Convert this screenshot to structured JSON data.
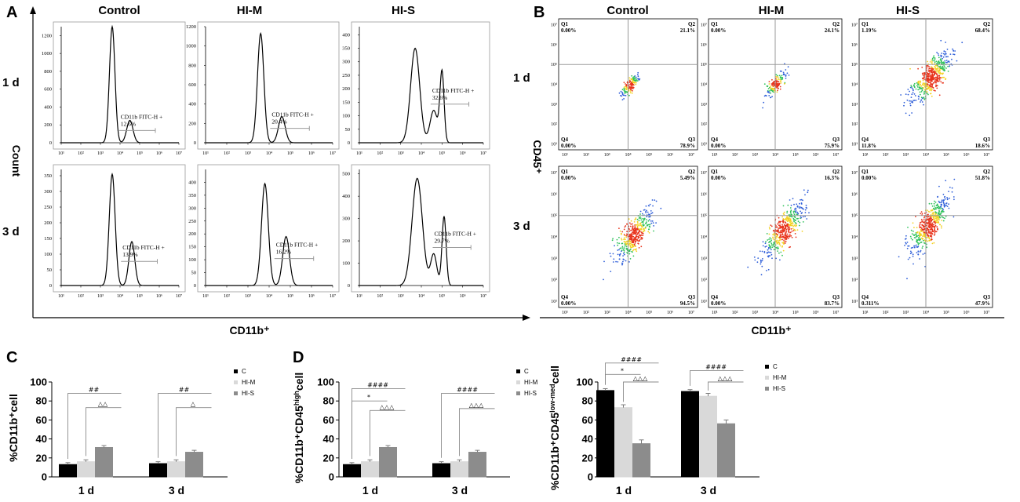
{
  "panels": {
    "a": "A",
    "b": "B",
    "c": "C",
    "d": "D"
  },
  "columns": [
    "Control",
    "HI-M",
    "HI-S"
  ],
  "rows": [
    "1 d",
    "3 d"
  ],
  "axis": {
    "histogram_y": "Count",
    "histogram_x": "CD11b⁺",
    "scatter_y": "CD45⁺",
    "scatter_x": "CD11b⁺"
  },
  "log_ticks": [
    "10¹",
    "10²",
    "10³",
    "10⁴",
    "10⁵",
    "10⁶",
    "10⁷"
  ],
  "histograms": [
    {
      "row": 0,
      "col": 0,
      "ymax": 1300,
      "yticks": [
        0,
        200,
        400,
        600,
        800,
        1000,
        1200
      ],
      "gate_label": "CD11b FITC-H +",
      "percent": "12.6%",
      "peaks": [
        {
          "x": 3.6,
          "h": 1300,
          "w": 0.14
        },
        {
          "x": 4.5,
          "h": 250,
          "w": 0.16
        }
      ]
    },
    {
      "row": 0,
      "col": 1,
      "ymax": 1200,
      "yticks": [
        0,
        200,
        400,
        600,
        800,
        1000,
        1200
      ],
      "gate_label": "CD11b FITC-H +",
      "percent": "20.4%",
      "peaks": [
        {
          "x": 3.6,
          "h": 1130,
          "w": 0.15
        },
        {
          "x": 4.6,
          "h": 270,
          "w": 0.16
        }
      ]
    },
    {
      "row": 0,
      "col": 2,
      "ymax": 430,
      "yticks": [
        0,
        50,
        100,
        150,
        200,
        250,
        300,
        350,
        400
      ],
      "gate_label": "CD11b FITC-H +",
      "percent": "32.6%",
      "peaks": [
        {
          "x": 3.7,
          "h": 350,
          "w": 0.22
        },
        {
          "x": 4.6,
          "h": 120,
          "w": 0.18
        },
        {
          "x": 5.0,
          "h": 260,
          "w": 0.1
        }
      ]
    },
    {
      "row": 1,
      "col": 0,
      "ymax": 370,
      "yticks": [
        0,
        50,
        100,
        150,
        200,
        250,
        300,
        350
      ],
      "gate_label": "CD11b FITC-H +",
      "percent": "13.9%",
      "peaks": [
        {
          "x": 3.6,
          "h": 355,
          "w": 0.15
        },
        {
          "x": 4.6,
          "h": 140,
          "w": 0.15
        }
      ]
    },
    {
      "row": 1,
      "col": 1,
      "ymax": 450,
      "yticks": [
        0,
        50,
        100,
        150,
        200,
        250,
        300,
        350,
        400
      ],
      "gate_label": "CD11b FITC-H +",
      "percent": "16.2%",
      "peaks": [
        {
          "x": 3.8,
          "h": 395,
          "w": 0.16
        },
        {
          "x": 4.8,
          "h": 190,
          "w": 0.16
        }
      ]
    },
    {
      "row": 1,
      "col": 2,
      "ymax": 520,
      "yticks": [
        0,
        100,
        200,
        300,
        400,
        500
      ],
      "gate_label": "CD11b FITC-H +",
      "percent": "29.7%",
      "peaks": [
        {
          "x": 3.8,
          "h": 480,
          "w": 0.25
        },
        {
          "x": 4.6,
          "h": 140,
          "w": 0.15
        },
        {
          "x": 5.1,
          "h": 310,
          "w": 0.1
        }
      ]
    }
  ],
  "scatter": [
    {
      "row": 0,
      "col": 0,
      "q1": "0.00%",
      "q2": "21.1%",
      "q3": "78.9%",
      "q4": "0.00%",
      "cx": 4.1,
      "cy": 3.95,
      "spread": 0.25,
      "n": 140
    },
    {
      "row": 0,
      "col": 1,
      "q1": "0.00%",
      "q2": "24.1%",
      "q3": "75.9%",
      "q4": "0.00%",
      "cx": 4.05,
      "cy": 4.0,
      "spread": 0.28,
      "n": 160
    },
    {
      "row": 0,
      "col": 2,
      "q1": "1.19%",
      "q2": "68.4%",
      "q3": "18.6%",
      "q4": "11.8%",
      "cx": 4.25,
      "cy": 4.35,
      "spread": 0.55,
      "n": 520
    },
    {
      "row": 1,
      "col": 0,
      "q1": "0.00%",
      "q2": "5.49%",
      "q3": "94.5%",
      "q4": "0.00%",
      "cx": 4.3,
      "cy": 4.1,
      "spread": 0.5,
      "n": 420
    },
    {
      "row": 1,
      "col": 1,
      "q1": "0.00%",
      "q2": "16.3%",
      "q3": "83.7%",
      "q4": "0.00%",
      "cx": 4.4,
      "cy": 4.3,
      "spread": 0.55,
      "n": 460
    },
    {
      "row": 1,
      "col": 2,
      "q1": "0.00%",
      "q2": "51.8%",
      "q3": "47.9%",
      "q4": "0.311%",
      "cx": 4.15,
      "cy": 4.5,
      "spread": 0.55,
      "n": 520
    }
  ],
  "legend": [
    "C",
    "HI-M",
    "HI-S"
  ],
  "bar_colors": {
    "C": "#000000",
    "HI-M": "#d9d9d9",
    "HI-S": "#8c8c8c"
  },
  "chart_data": [
    {
      "type": "bar",
      "id": "C",
      "ylabel": "%CD11b⁺cell",
      "categories": [
        "1 d",
        "3 d"
      ],
      "ylim": [
        0,
        100
      ],
      "yticks": [
        0,
        20,
        40,
        60,
        80,
        100
      ],
      "series": [
        {
          "name": "C",
          "values": [
            13,
            14
          ],
          "err": [
            2,
            2
          ]
        },
        {
          "name": "HI-M",
          "values": [
            16,
            16
          ],
          "err": [
            2,
            2
          ]
        },
        {
          "name": "HI-S",
          "values": [
            31,
            26
          ],
          "err": [
            2,
            2
          ]
        }
      ],
      "annotations": [
        {
          "cat": 0,
          "from": 0,
          "to": 2,
          "level": 88,
          "text": "##"
        },
        {
          "cat": 0,
          "from": 1,
          "to": 2,
          "level": 73,
          "text": "△△"
        },
        {
          "cat": 1,
          "from": 0,
          "to": 2,
          "level": 88,
          "text": "##"
        },
        {
          "cat": 1,
          "from": 1,
          "to": 2,
          "level": 73,
          "text": "△"
        }
      ]
    },
    {
      "type": "bar",
      "id": "D1",
      "ylabel_parts": [
        "%CD11b⁺CD45",
        "high",
        "cell"
      ],
      "categories": [
        "1 d",
        "3 d"
      ],
      "ylim": [
        0,
        100
      ],
      "yticks": [
        0,
        20,
        40,
        60,
        80,
        100
      ],
      "series": [
        {
          "name": "C",
          "values": [
            13,
            14
          ],
          "err": [
            2,
            2
          ]
        },
        {
          "name": "HI-M",
          "values": [
            16,
            16
          ],
          "err": [
            2,
            2
          ]
        },
        {
          "name": "HI-S",
          "values": [
            31,
            26
          ],
          "err": [
            2,
            2
          ]
        }
      ],
      "annotations": [
        {
          "cat": 0,
          "from": 0,
          "to": 2,
          "level": 93,
          "text": "####"
        },
        {
          "cat": 0,
          "from": 0,
          "to": 1,
          "level": 80,
          "text": "*"
        },
        {
          "cat": 0,
          "from": 1,
          "to": 2,
          "level": 70,
          "text": "△△△"
        },
        {
          "cat": 1,
          "from": 0,
          "to": 2,
          "level": 88,
          "text": "####"
        },
        {
          "cat": 1,
          "from": 1,
          "to": 2,
          "level": 72,
          "text": "△△△"
        }
      ]
    },
    {
      "type": "bar",
      "id": "D2",
      "ylabel_parts": [
        "%CD11b⁺CD45",
        "low-med",
        "cell"
      ],
      "categories": [
        "1 d",
        "3 d"
      ],
      "ylim": [
        0,
        100
      ],
      "yticks": [
        0,
        20,
        40,
        60,
        80,
        100
      ],
      "series": [
        {
          "name": "C",
          "values": [
            91,
            90
          ],
          "err": [
            2,
            2
          ]
        },
        {
          "name": "HI-M",
          "values": [
            73,
            85
          ],
          "err": [
            3,
            3
          ]
        },
        {
          "name": "HI-S",
          "values": [
            35,
            56
          ],
          "err": [
            4,
            4
          ]
        }
      ],
      "annotations": [
        {
          "cat": 0,
          "from": 0,
          "to": 2,
          "level": 120,
          "text": "####"
        },
        {
          "cat": 0,
          "from": 0,
          "to": 1,
          "level": 108,
          "text": "*"
        },
        {
          "cat": 0,
          "from": 1,
          "to": 2,
          "level": 100,
          "text": "△△△"
        },
        {
          "cat": 1,
          "from": 0,
          "to": 2,
          "level": 112,
          "text": "####"
        },
        {
          "cat": 1,
          "from": 1,
          "to": 2,
          "level": 100,
          "text": "△△△"
        }
      ]
    }
  ]
}
